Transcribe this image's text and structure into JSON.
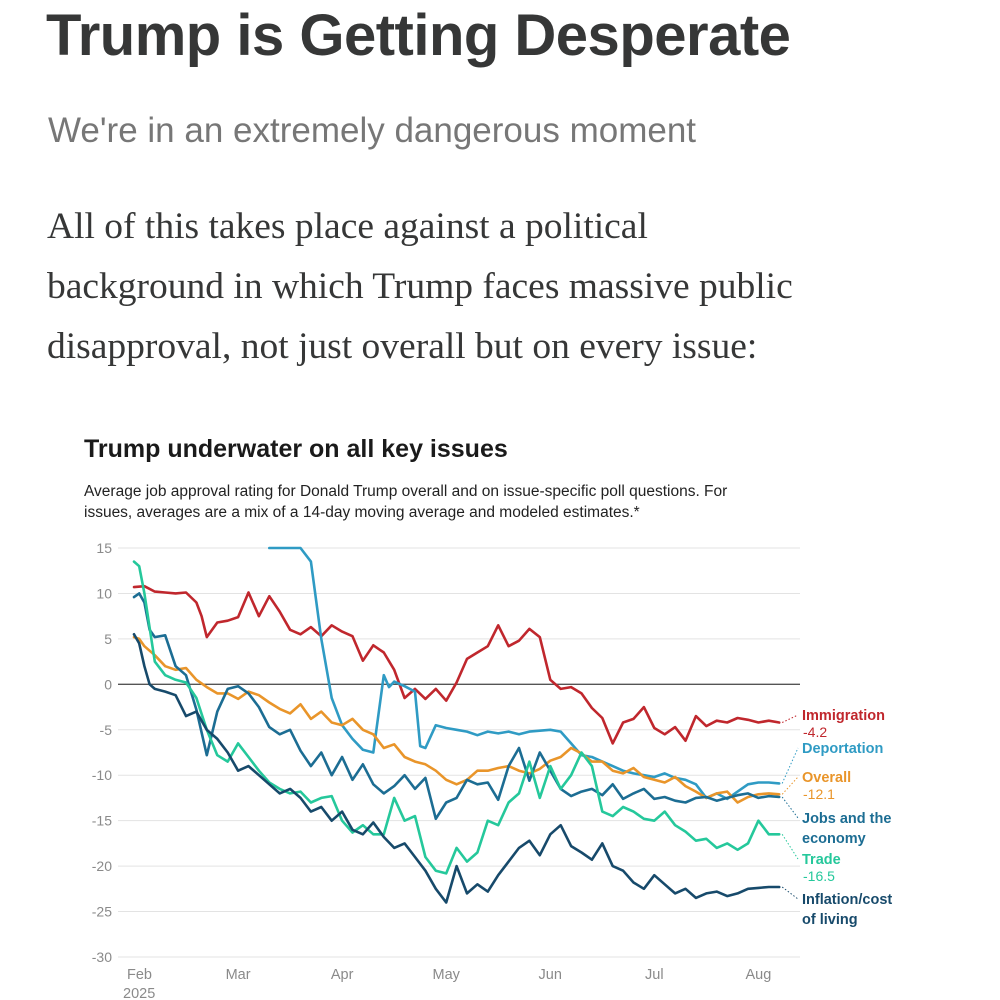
{
  "article": {
    "title": "Trump is Getting Desperate",
    "subtitle": "We're in an extremely dangerous moment",
    "body_lines": [
      "All of this takes place against a political",
      "background in which Trump faces massive public",
      "disapproval, not just overall but on every issue:"
    ]
  },
  "colors": {
    "title": "#363737",
    "subtitle": "#777777",
    "grid": "#e3e3e3",
    "zero_line": "#555555",
    "tick_text": "#8a8a8a"
  },
  "chart_data": {
    "type": "line",
    "title": "Trump underwater on all key issues",
    "subtitle_lines": [
      "Average job approval rating for Donald Trump overall and on issue-specific poll questions. For",
      "issues, averages are a mix of a 14-day moving average and modeled estimates.*"
    ],
    "xlabel": "",
    "ylabel": "",
    "ylim": [
      -30,
      15
    ],
    "xlim": [
      0,
      6.4
    ],
    "y_ticks": [
      15,
      10,
      5,
      0,
      -5,
      -10,
      -15,
      -20,
      -25,
      -30
    ],
    "x_ticks": [
      {
        "value": 0,
        "label": "Feb",
        "sublabel": "2025"
      },
      {
        "value": 1,
        "label": "Mar",
        "sublabel": ""
      },
      {
        "value": 2,
        "label": "Apr",
        "sublabel": ""
      },
      {
        "value": 3,
        "label": "May",
        "sublabel": ""
      },
      {
        "value": 4,
        "label": "Jun",
        "sublabel": ""
      },
      {
        "value": 5,
        "label": "Jul",
        "sublabel": ""
      },
      {
        "value": 6,
        "label": "Aug",
        "sublabel": ""
      }
    ],
    "grid": true,
    "series": [
      {
        "name": "Immigration",
        "label_lines": [
          "Immigration"
        ],
        "final_value": "-4.2",
        "color": "#c0272d",
        "x": [
          0,
          0.1,
          0.2,
          0.3,
          0.4,
          0.5,
          0.6,
          0.65,
          0.7,
          0.8,
          0.9,
          1.0,
          1.1,
          1.2,
          1.3,
          1.4,
          1.5,
          1.6,
          1.7,
          1.8,
          1.9,
          2.0,
          2.1,
          2.2,
          2.3,
          2.4,
          2.5,
          2.6,
          2.7,
          2.8,
          2.9,
          3.0,
          3.1,
          3.2,
          3.3,
          3.4,
          3.5,
          3.6,
          3.7,
          3.8,
          3.9,
          4.0,
          4.1,
          4.2,
          4.3,
          4.4,
          4.5,
          4.6,
          4.7,
          4.8,
          4.9,
          5.0,
          5.1,
          5.2,
          5.3,
          5.4,
          5.5,
          5.6,
          5.7,
          5.8,
          5.9,
          6.0,
          6.1,
          6.2
        ],
        "values": [
          10.7,
          10.8,
          10.2,
          10.1,
          10.0,
          10.1,
          9.0,
          7.5,
          5.2,
          6.8,
          7.0,
          7.4,
          10.1,
          7.5,
          9.7,
          8.0,
          6.0,
          5.5,
          6.3,
          5.3,
          6.5,
          5.8,
          5.3,
          2.6,
          4.3,
          3.5,
          1.6,
          -1.5,
          -0.5,
          -1.6,
          -0.5,
          -1.8,
          0.2,
          2.8,
          3.5,
          4.2,
          6.5,
          4.2,
          4.8,
          6.1,
          5.2,
          0.5,
          -0.5,
          -0.3,
          -1.0,
          -2.6,
          -3.7,
          -6.5,
          -4.2,
          -3.8,
          -2.5,
          -4.8,
          -5.5,
          -4.7,
          -6.2,
          -3.5,
          -4.6,
          -4.0,
          -4.2,
          -3.7,
          -3.9,
          -4.2,
          -4.0,
          -4.2
        ]
      },
      {
        "name": "Deportation",
        "label_lines": [
          "Deportation"
        ],
        "final_value": "",
        "color": "#2f9bc4",
        "x": [
          1.3,
          1.5,
          1.6,
          1.7,
          1.8,
          1.9,
          2.0,
          2.1,
          2.2,
          2.3,
          2.4,
          2.45,
          2.5,
          2.6,
          2.7,
          2.75,
          2.8,
          2.9,
          3.0,
          3.1,
          3.2,
          3.3,
          3.4,
          3.5,
          3.6,
          3.7,
          3.8,
          3.9,
          4.0,
          4.1,
          4.2,
          4.3,
          4.4,
          4.5,
          4.6,
          4.7,
          4.8,
          4.9,
          5.0,
          5.1,
          5.2,
          5.3,
          5.4,
          5.5,
          5.6,
          5.7,
          5.8,
          5.9,
          6.0,
          6.1,
          6.2
        ],
        "values": [
          15.0,
          15.0,
          15.0,
          13.5,
          5.0,
          -1.5,
          -4.5,
          -6.0,
          -7.2,
          -7.5,
          1.0,
          -0.3,
          0.3,
          -0.2,
          -0.8,
          -6.8,
          -7.0,
          -4.5,
          -4.8,
          -5.0,
          -5.2,
          -5.6,
          -5.2,
          -5.4,
          -5.2,
          -5.5,
          -5.2,
          -5.1,
          -5.0,
          -5.2,
          -6.5,
          -7.8,
          -8.0,
          -8.5,
          -9.0,
          -9.5,
          -9.8,
          -10.0,
          -10.2,
          -9.8,
          -10.3,
          -10.5,
          -11.0,
          -12.5,
          -12.0,
          -12.6,
          -11.8,
          -11.0,
          -10.8,
          -10.8,
          -10.9
        ]
      },
      {
        "name": "Overall",
        "label_lines": [
          "Overall"
        ],
        "final_value": "-12.1",
        "color": "#e9952a",
        "x": [
          0,
          0.05,
          0.1,
          0.2,
          0.3,
          0.4,
          0.5,
          0.6,
          0.7,
          0.8,
          0.9,
          1.0,
          1.1,
          1.2,
          1.3,
          1.4,
          1.5,
          1.6,
          1.7,
          1.8,
          1.9,
          2.0,
          2.1,
          2.2,
          2.3,
          2.4,
          2.5,
          2.6,
          2.7,
          2.8,
          2.9,
          3.0,
          3.1,
          3.2,
          3.3,
          3.4,
          3.5,
          3.6,
          3.7,
          3.8,
          3.9,
          4.0,
          4.1,
          4.2,
          4.3,
          4.4,
          4.5,
          4.6,
          4.7,
          4.8,
          4.9,
          5.0,
          5.1,
          5.2,
          5.3,
          5.4,
          5.5,
          5.6,
          5.7,
          5.8,
          5.9,
          6.0,
          6.1,
          6.2
        ],
        "values": [
          5.2,
          5.0,
          4.2,
          3.2,
          2.0,
          1.6,
          1.8,
          0.5,
          -0.3,
          -1.0,
          -1.0,
          -1.6,
          -0.8,
          -1.2,
          -2.0,
          -2.7,
          -3.2,
          -2.2,
          -3.8,
          -3.0,
          -4.2,
          -4.5,
          -3.8,
          -5.0,
          -5.5,
          -7.0,
          -6.6,
          -8.0,
          -8.5,
          -8.8,
          -9.5,
          -10.5,
          -11.0,
          -10.5,
          -9.5,
          -9.5,
          -9.2,
          -9.0,
          -9.5,
          -9.8,
          -9.3,
          -8.4,
          -8.0,
          -7.0,
          -7.6,
          -8.5,
          -8.5,
          -9.5,
          -9.8,
          -9.2,
          -10.2,
          -10.5,
          -10.8,
          -10.2,
          -11.2,
          -11.8,
          -12.5,
          -12.0,
          -11.8,
          -13.0,
          -12.4,
          -12.1,
          -12.0,
          -12.1
        ]
      },
      {
        "name": "Jobs and the economy",
        "label_lines": [
          "Jobs and the",
          "economy"
        ],
        "final_value": "",
        "color": "#1c6d93",
        "x": [
          0,
          0.05,
          0.1,
          0.15,
          0.2,
          0.3,
          0.4,
          0.5,
          0.6,
          0.7,
          0.8,
          0.9,
          1.0,
          1.1,
          1.2,
          1.3,
          1.4,
          1.5,
          1.6,
          1.7,
          1.8,
          1.9,
          2.0,
          2.1,
          2.2,
          2.3,
          2.4,
          2.5,
          2.6,
          2.7,
          2.8,
          2.9,
          3.0,
          3.1,
          3.2,
          3.3,
          3.4,
          3.5,
          3.6,
          3.7,
          3.8,
          3.9,
          4.0,
          4.1,
          4.2,
          4.3,
          4.4,
          4.5,
          4.6,
          4.7,
          4.8,
          4.9,
          5.0,
          5.1,
          5.2,
          5.3,
          5.4,
          5.5,
          5.6,
          5.7,
          5.8,
          5.9,
          6.0,
          6.1,
          6.2
        ],
        "values": [
          9.6,
          10.0,
          9.0,
          6.0,
          5.2,
          5.4,
          2.0,
          1.0,
          -2.8,
          -7.8,
          -3.0,
          -0.5,
          -0.2,
          -1.0,
          -2.5,
          -4.7,
          -5.5,
          -5.0,
          -7.3,
          -9.0,
          -7.5,
          -10.0,
          -8.0,
          -10.5,
          -8.8,
          -11.0,
          -12.0,
          -11.2,
          -10.0,
          -11.5,
          -10.3,
          -14.8,
          -13.0,
          -12.5,
          -10.5,
          -11.0,
          -10.8,
          -12.7,
          -9.0,
          -7.0,
          -10.6,
          -7.5,
          -9.5,
          -11.5,
          -12.3,
          -11.8,
          -11.5,
          -12.2,
          -11.0,
          -12.6,
          -12.0,
          -11.5,
          -12.6,
          -12.4,
          -12.8,
          -13.0,
          -12.5,
          -12.4,
          -12.8,
          -12.5,
          -12.2,
          -12.0,
          -12.5,
          -12.3,
          -12.4
        ]
      },
      {
        "name": "Trade",
        "label_lines": [
          "Trade"
        ],
        "final_value": "-16.5",
        "color": "#25c89b",
        "x": [
          0,
          0.05,
          0.1,
          0.2,
          0.3,
          0.4,
          0.5,
          0.6,
          0.7,
          0.8,
          0.9,
          1.0,
          1.1,
          1.2,
          1.3,
          1.4,
          1.5,
          1.6,
          1.7,
          1.8,
          1.9,
          2.0,
          2.1,
          2.2,
          2.3,
          2.4,
          2.5,
          2.6,
          2.7,
          2.8,
          2.9,
          3.0,
          3.1,
          3.2,
          3.3,
          3.4,
          3.5,
          3.6,
          3.7,
          3.8,
          3.9,
          4.0,
          4.1,
          4.2,
          4.3,
          4.4,
          4.5,
          4.6,
          4.7,
          4.8,
          4.9,
          5.0,
          5.1,
          5.2,
          5.3,
          5.4,
          5.5,
          5.6,
          5.7,
          5.8,
          5.9,
          6.0,
          6.1,
          6.2
        ],
        "values": [
          13.5,
          13.0,
          10.0,
          2.5,
          1.0,
          0.5,
          0.2,
          -1.5,
          -5.0,
          -7.8,
          -8.5,
          -6.5,
          -8.0,
          -9.5,
          -10.8,
          -11.5,
          -12.0,
          -11.8,
          -13.0,
          -12.5,
          -12.3,
          -15.0,
          -16.3,
          -15.5,
          -16.5,
          -16.5,
          -12.5,
          -15.0,
          -14.5,
          -19.0,
          -20.5,
          -20.8,
          -18.0,
          -19.5,
          -18.5,
          -15.0,
          -15.5,
          -13.0,
          -12.0,
          -8.5,
          -12.5,
          -9.0,
          -11.5,
          -10.0,
          -7.5,
          -9.0,
          -14.0,
          -14.5,
          -13.5,
          -14.0,
          -14.8,
          -15.0,
          -14.0,
          -15.5,
          -16.2,
          -17.2,
          -17.0,
          -18.0,
          -17.5,
          -18.2,
          -17.5,
          -15.0,
          -16.5,
          -16.5
        ]
      },
      {
        "name": "Inflation/cost of living",
        "label_lines": [
          "Inflation/cost",
          "of living"
        ],
        "final_value": "",
        "color": "#174a6b",
        "x": [
          0,
          0.05,
          0.1,
          0.15,
          0.2,
          0.3,
          0.4,
          0.5,
          0.6,
          0.7,
          0.8,
          0.9,
          1.0,
          1.1,
          1.2,
          1.3,
          1.4,
          1.5,
          1.6,
          1.7,
          1.8,
          1.9,
          2.0,
          2.1,
          2.2,
          2.3,
          2.4,
          2.5,
          2.6,
          2.7,
          2.8,
          2.9,
          3.0,
          3.1,
          3.2,
          3.3,
          3.4,
          3.5,
          3.6,
          3.7,
          3.8,
          3.9,
          4.0,
          4.1,
          4.2,
          4.3,
          4.4,
          4.5,
          4.6,
          4.7,
          4.8,
          4.9,
          5.0,
          5.1,
          5.2,
          5.3,
          5.4,
          5.5,
          5.6,
          5.7,
          5.8,
          5.9,
          6.0,
          6.1,
          6.2
        ],
        "values": [
          5.5,
          4.5,
          2.0,
          0.0,
          -0.5,
          -0.8,
          -1.2,
          -3.5,
          -3.0,
          -5.0,
          -6.0,
          -7.5,
          -9.5,
          -9.0,
          -10.0,
          -11.0,
          -12.0,
          -11.5,
          -12.5,
          -14.0,
          -13.5,
          -15.0,
          -14.0,
          -16.0,
          -16.5,
          -15.2,
          -16.8,
          -18.0,
          -17.5,
          -19.0,
          -20.5,
          -22.5,
          -24.0,
          -20.0,
          -23.0,
          -22.0,
          -22.8,
          -21.0,
          -19.5,
          -18.0,
          -17.2,
          -18.8,
          -16.5,
          -15.5,
          -17.8,
          -18.5,
          -19.3,
          -17.5,
          -20.0,
          -20.5,
          -21.8,
          -22.5,
          -21.0,
          -22.0,
          -23.0,
          -22.5,
          -23.5,
          -23.0,
          -22.8,
          -23.3,
          -23.0,
          -22.5,
          -22.4,
          -22.3,
          -22.3
        ]
      }
    ]
  }
}
